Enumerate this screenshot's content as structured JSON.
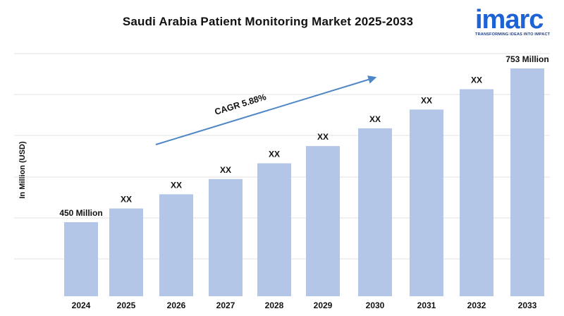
{
  "brand": {
    "logo_text": "imarc",
    "tagline": "TRANSFORMING IDEAS INTO IMPACT",
    "logo_color": "#1e63d6"
  },
  "chart_data": {
    "type": "bar",
    "title": "Saudi Arabia Patient Monitoring Market 2025-2033",
    "xlabel": "",
    "ylabel": "In Million (USD)",
    "categories": [
      "2024",
      "2025",
      "2026",
      "2027",
      "2028",
      "2029",
      "2030",
      "2031",
      "2032",
      "2033"
    ],
    "values": [
      450,
      477,
      505,
      535,
      566,
      600,
      635,
      672,
      712,
      753
    ],
    "data_labels": [
      "450 Million",
      "XX",
      "XX",
      "XX",
      "XX",
      "XX",
      "XX",
      "XX",
      "XX",
      "753 Million"
    ],
    "annotation": "CAGR 5.88%",
    "ylim": [
      0,
      800
    ],
    "grid": true,
    "bar_color": "#b4c6e7",
    "arrow_color": "#4f86c6"
  }
}
